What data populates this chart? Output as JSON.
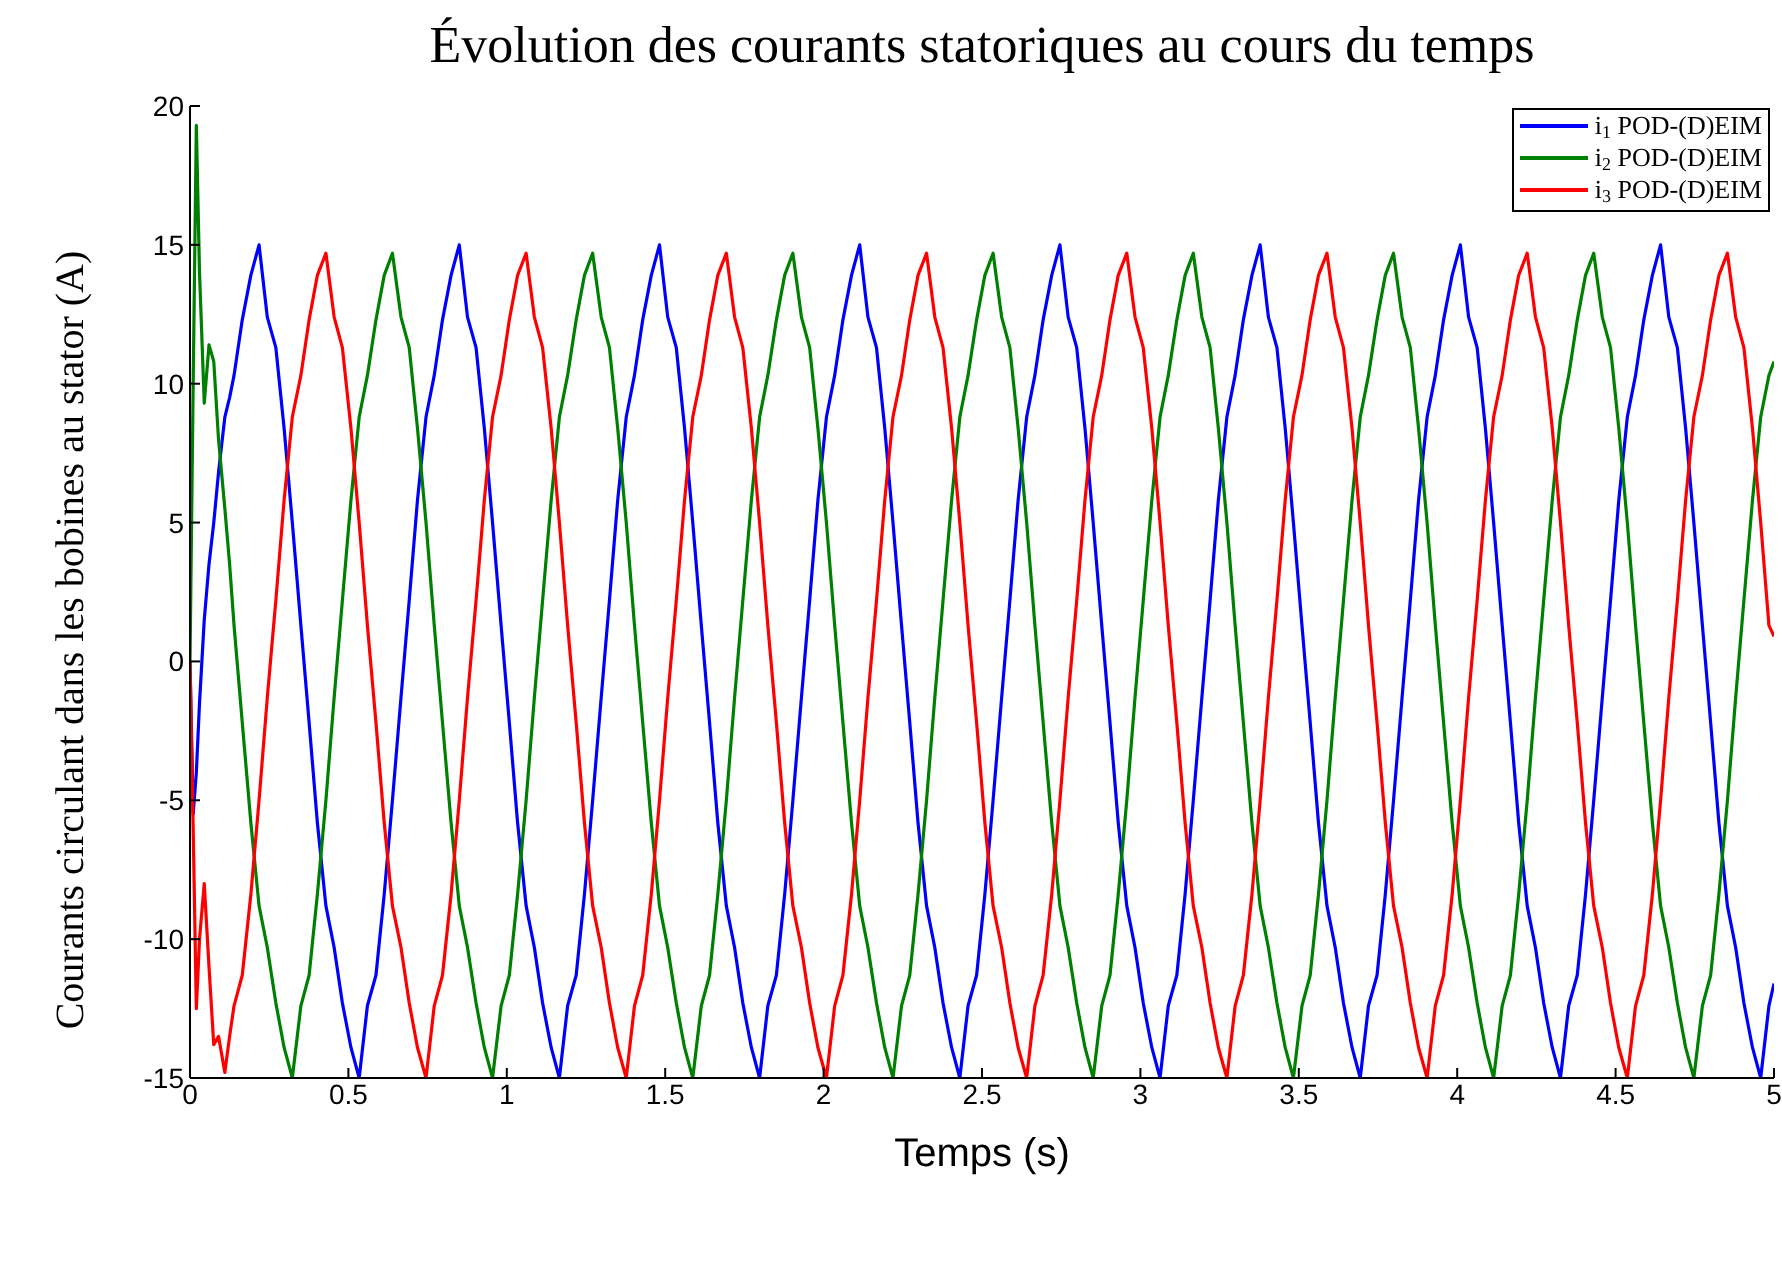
{
  "chart_data": {
    "type": "line",
    "title": "Évolution des courants statoriques au cours du temps",
    "xlabel": "Temps (s)",
    "ylabel": "Courants circulant dans les bobines au stator (A)",
    "legend": "top right",
    "xlim": [
      0,
      5
    ],
    "xticks": [
      0,
      0.5,
      1,
      1.5,
      2,
      2.5,
      3,
      3.5,
      4,
      4.5,
      5
    ],
    "ylim": [
      -15,
      20
    ],
    "yticks": [
      -15,
      -10,
      -5,
      0,
      5,
      10,
      15,
      20
    ],
    "x": [
      0,
      0.01,
      0.02,
      0.03,
      0.045,
      0.06,
      0.075,
      0.09,
      0.11,
      0.125,
      0.139,
      0.165,
      0.192,
      0.218,
      0.244,
      0.271,
      0.297,
      0.323,
      0.35,
      0.376,
      0.402,
      0.429,
      0.455,
      0.481,
      0.508,
      0.534,
      0.56,
      0.587,
      0.613,
      0.639,
      0.666,
      0.692,
      0.718,
      0.745,
      0.771,
      0.797,
      0.824,
      0.85,
      0.876,
      0.903,
      0.929,
      0.955,
      0.982,
      1.008,
      1.034,
      1.061,
      1.087,
      1.113,
      1.14,
      1.166,
      1.192,
      1.219,
      1.245,
      1.271,
      1.298,
      1.324,
      1.35,
      1.377,
      1.403,
      1.429,
      1.456,
      1.482,
      1.508,
      1.535,
      1.561,
      1.587,
      1.614,
      1.64,
      1.666,
      1.693,
      1.719,
      1.745,
      1.772,
      1.798,
      1.824,
      1.851,
      1.877,
      1.903,
      1.93,
      1.956,
      1.982,
      2.009,
      2.035,
      2.061,
      2.088,
      2.114,
      2.14,
      2.167,
      2.193,
      2.219,
      2.246,
      2.272,
      2.298,
      2.325,
      2.351,
      2.377,
      2.404,
      2.43,
      2.456,
      2.483,
      2.509,
      2.535,
      2.562,
      2.588,
      2.614,
      2.641,
      2.667,
      2.693,
      2.72,
      2.746,
      2.772,
      2.799,
      2.825,
      2.851,
      2.878,
      2.904,
      2.93,
      2.957,
      2.983,
      3.009,
      3.036,
      3.062,
      3.088,
      3.115,
      3.141,
      3.167,
      3.194,
      3.22,
      3.246,
      3.273,
      3.299,
      3.325,
      3.352,
      3.378,
      3.404,
      3.431,
      3.457,
      3.483,
      3.51,
      3.536,
      3.562,
      3.589,
      3.615,
      3.641,
      3.668,
      3.694,
      3.72,
      3.747,
      3.773,
      3.799,
      3.826,
      3.852,
      3.878,
      3.905,
      3.931,
      3.957,
      3.984,
      4.01,
      4.036,
      4.063,
      4.089,
      4.115,
      4.142,
      4.168,
      4.194,
      4.221,
      4.247,
      4.273,
      4.3,
      4.326,
      4.352,
      4.379,
      4.405,
      4.431,
      4.458,
      4.484,
      4.51,
      4.537,
      4.563,
      4.589,
      4.616,
      4.642,
      4.668,
      4.695,
      4.721,
      4.747,
      4.774,
      4.8,
      4.826,
      4.853,
      4.879,
      4.905,
      4.932,
      4.958,
      4.984,
      5
    ],
    "series": [
      {
        "name": "i$_{1}$ POD-(D)EIM",
        "color": "#0000ff",
        "values": [
          0,
          -5.5,
          -4,
          -1.5,
          1.5,
          3.5,
          5,
          6.8,
          8.8,
          9.5,
          10.3,
          12.3,
          13.9,
          15,
          12.4,
          11.3,
          8.4,
          5,
          1.3,
          -2.2,
          -5.8,
          -8.8,
          -10.3,
          -12.3,
          -13.9,
          -15,
          -12.4,
          -11.3,
          -8.4,
          -5,
          -1.3,
          2.2,
          5.8,
          8.8,
          10.3,
          12.3,
          13.9,
          15,
          12.4,
          11.3,
          8.4,
          5,
          1.3,
          -2.2,
          -5.8,
          -8.8,
          -10.3,
          -12.3,
          -13.9,
          -15,
          -12.4,
          -11.3,
          -8.4,
          -5,
          -1.3,
          2.2,
          5.8,
          8.8,
          10.3,
          12.3,
          13.9,
          15,
          12.4,
          11.3,
          8.4,
          5,
          1.3,
          -2.2,
          -5.8,
          -8.8,
          -10.3,
          -12.3,
          -13.9,
          -15,
          -12.4,
          -11.3,
          -8.4,
          -5,
          -1.3,
          2.2,
          5.8,
          8.8,
          10.3,
          12.3,
          13.9,
          15,
          12.4,
          11.3,
          8.4,
          5,
          1.3,
          -2.2,
          -5.8,
          -8.8,
          -10.3,
          -12.3,
          -13.9,
          -15,
          -12.4,
          -11.3,
          -8.4,
          -5,
          -1.3,
          2.2,
          5.8,
          8.8,
          10.3,
          12.3,
          13.9,
          15,
          12.4,
          11.3,
          8.4,
          5,
          1.3,
          -2.2,
          -5.8,
          -8.8,
          -10.3,
          -12.3,
          -13.9,
          -15,
          -12.4,
          -11.3,
          -8.4,
          -5,
          -1.3,
          2.2,
          5.8,
          8.8,
          10.3,
          12.3,
          13.9,
          15,
          12.4,
          11.3,
          8.4,
          5,
          1.3,
          -2.2,
          -5.8,
          -8.8,
          -10.3,
          -12.3,
          -13.9,
          -15,
          -12.4,
          -11.3,
          -8.4,
          -5,
          -1.3,
          2.2,
          5.8,
          8.8,
          10.3,
          12.3,
          13.9,
          15,
          12.4,
          11.3,
          8.4,
          5,
          1.3,
          -2.2,
          -5.8,
          -8.8,
          -10.3,
          -12.3,
          -13.9,
          -15,
          -12.4,
          -11.3,
          -8.4,
          -5,
          -1.3,
          2.2,
          5.8,
          8.8,
          10.3,
          12.3,
          13.9,
          15,
          12.4,
          11.3,
          8.4,
          5,
          1.3,
          -2.2,
          -5.8,
          -8.8,
          -10.3,
          -12.3,
          -13.9,
          -15,
          -12.4,
          -11.6
        ]
      },
      {
        "name": "i$_{2}$ POD-(D)EIM",
        "color": "#008000",
        "values": [
          0,
          10,
          19.3,
          14,
          9.3,
          11.4,
          10.8,
          8,
          5.5,
          3.5,
          1.3,
          -2.2,
          -5.8,
          -8.8,
          -10.3,
          -12.3,
          -13.9,
          -15,
          -12.4,
          -11.3,
          -8.4,
          -5,
          -1.3,
          2.2,
          5.8,
          8.8,
          10.3,
          12.3,
          13.9,
          14.7,
          12.4,
          11.3,
          8.4,
          5,
          1.3,
          -2.2,
          -5.8,
          -8.8,
          -10.3,
          -12.3,
          -13.9,
          -15,
          -12.4,
          -11.3,
          -8.4,
          -5,
          -1.3,
          2.2,
          5.8,
          8.8,
          10.3,
          12.3,
          13.9,
          14.7,
          12.4,
          11.3,
          8.4,
          5,
          1.3,
          -2.2,
          -5.8,
          -8.8,
          -10.3,
          -12.3,
          -13.9,
          -15,
          -12.4,
          -11.3,
          -8.4,
          -5,
          -1.3,
          2.2,
          5.8,
          8.8,
          10.3,
          12.3,
          13.9,
          14.7,
          12.4,
          11.3,
          8.4,
          5,
          1.3,
          -2.2,
          -5.8,
          -8.8,
          -10.3,
          -12.3,
          -13.9,
          -15,
          -12.4,
          -11.3,
          -8.4,
          -5,
          -1.3,
          2.2,
          5.8,
          8.8,
          10.3,
          12.3,
          13.9,
          14.7,
          12.4,
          11.3,
          8.4,
          5,
          1.3,
          -2.2,
          -5.8,
          -8.8,
          -10.3,
          -12.3,
          -13.9,
          -15,
          -12.4,
          -11.3,
          -8.4,
          -5,
          -1.3,
          2.2,
          5.8,
          8.8,
          10.3,
          12.3,
          13.9,
          14.7,
          12.4,
          11.3,
          8.4,
          5,
          1.3,
          -2.2,
          -5.8,
          -8.8,
          -10.3,
          -12.3,
          -13.9,
          -15,
          -12.4,
          -11.3,
          -8.4,
          -5,
          -1.3,
          2.2,
          5.8,
          8.8,
          10.3,
          12.3,
          13.9,
          14.7,
          12.4,
          11.3,
          8.4,
          5,
          1.3,
          -2.2,
          -5.8,
          -8.8,
          -10.3,
          -12.3,
          -13.9,
          -15,
          -12.4,
          -11.3,
          -8.4,
          -5,
          -1.3,
          2.2,
          5.8,
          8.8,
          10.3,
          12.3,
          13.9,
          14.7,
          12.4,
          11.3,
          8.4,
          5,
          1.3,
          -2.2,
          -5.8,
          -8.8,
          -10.3,
          -12.3,
          -13.9,
          -15,
          -12.4,
          -11.3,
          -8.4,
          -5,
          -1.3,
          2.2,
          5.8,
          8.8,
          10.3,
          10.8
        ]
      },
      {
        "name": "i$_{3}$ POD-(D)EIM",
        "color": "#ff0000",
        "values": [
          0,
          -6,
          -12.5,
          -10,
          -8,
          -11,
          -13.8,
          -13.5,
          -14.8,
          -13.5,
          -12.4,
          -11.3,
          -8.4,
          -5,
          -1.3,
          2.2,
          5.8,
          8.8,
          10.3,
          12.3,
          13.9,
          14.7,
          12.4,
          11.3,
          8.4,
          5,
          1.3,
          -2.2,
          -5.8,
          -8.8,
          -10.3,
          -12.3,
          -13.9,
          -15,
          -12.4,
          -11.3,
          -8.4,
          -5,
          -1.3,
          2.2,
          5.8,
          8.8,
          10.3,
          12.3,
          13.9,
          14.7,
          12.4,
          11.3,
          8.4,
          5,
          1.3,
          -2.2,
          -5.8,
          -8.8,
          -10.3,
          -12.3,
          -13.9,
          -15,
          -12.4,
          -11.3,
          -8.4,
          -5,
          -1.3,
          2.2,
          5.8,
          8.8,
          10.3,
          12.3,
          13.9,
          14.7,
          12.4,
          11.3,
          8.4,
          5,
          1.3,
          -2.2,
          -5.8,
          -8.8,
          -10.3,
          -12.3,
          -13.9,
          -15,
          -12.4,
          -11.3,
          -8.4,
          -5,
          -1.3,
          2.2,
          5.8,
          8.8,
          10.3,
          12.3,
          13.9,
          14.7,
          12.4,
          11.3,
          8.4,
          5,
          1.3,
          -2.2,
          -5.8,
          -8.8,
          -10.3,
          -12.3,
          -13.9,
          -15,
          -12.4,
          -11.3,
          -8.4,
          -5,
          -1.3,
          2.2,
          5.8,
          8.8,
          10.3,
          12.3,
          13.9,
          14.7,
          12.4,
          11.3,
          8.4,
          5,
          1.3,
          -2.2,
          -5.8,
          -8.8,
          -10.3,
          -12.3,
          -13.9,
          -15,
          -12.4,
          -11.3,
          -8.4,
          -5,
          -1.3,
          2.2,
          5.8,
          8.8,
          10.3,
          12.3,
          13.9,
          14.7,
          12.4,
          11.3,
          8.4,
          5,
          1.3,
          -2.2,
          -5.8,
          -8.8,
          -10.3,
          -12.3,
          -13.9,
          -15,
          -12.4,
          -11.3,
          -8.4,
          -5,
          -1.3,
          2.2,
          5.8,
          8.8,
          10.3,
          12.3,
          13.9,
          14.7,
          12.4,
          11.3,
          8.4,
          5,
          1.3,
          -2.2,
          -5.8,
          -8.8,
          -10.3,
          -12.3,
          -13.9,
          -15,
          -12.4,
          -11.3,
          -8.4,
          -5,
          -1.3,
          2.2,
          5.8,
          8.8,
          10.3,
          12.3,
          13.9,
          14.7,
          12.4,
          11.3,
          8.4,
          5,
          1.3,
          0.9
        ]
      }
    ]
  }
}
